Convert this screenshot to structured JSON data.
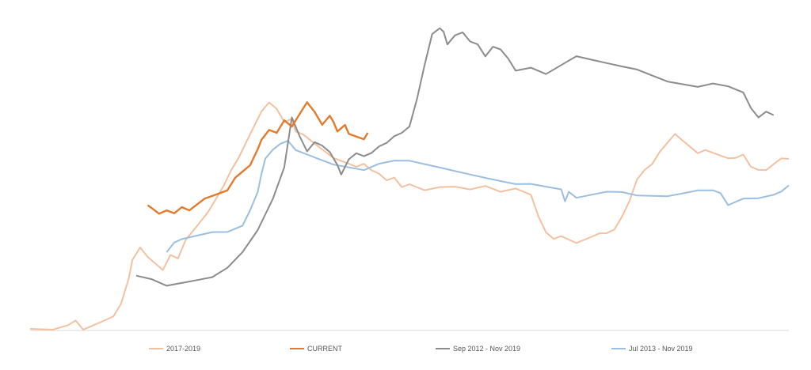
{
  "chart_data": {
    "type": "line",
    "title": "",
    "xlabel": "",
    "ylabel": "",
    "grid": false,
    "axes_visible": false,
    "legend_placement": "bottom",
    "ylim": [
      0,
      100
    ],
    "xlim": [
      0,
      100
    ],
    "series": [
      {
        "name": "2017-2019",
        "color": "#f4c1a0",
        "x": [
          0,
          1.5,
          3,
          5,
          6,
          7,
          8.5,
          10,
          11,
          12,
          13,
          13.5,
          14.5,
          15.5,
          16.5,
          17.5,
          18.5,
          19.5,
          20.5,
          21.5,
          22.5,
          23.5,
          24.5,
          25.5,
          26.5,
          27.5,
          28.5,
          29.5,
          30.5,
          31.5,
          32.5,
          33.5,
          34.5,
          35,
          36,
          37,
          38,
          39,
          40,
          41,
          42,
          43,
          44,
          45,
          46,
          47,
          48,
          49,
          50,
          52,
          54,
          56,
          58,
          60,
          62,
          64,
          66,
          67,
          68,
          69,
          70,
          71,
          72,
          73,
          74,
          75,
          76,
          77,
          78,
          79,
          80,
          81,
          82,
          83,
          84,
          85,
          86,
          87,
          88,
          89,
          90,
          91,
          92,
          93,
          94,
          95,
          96,
          97,
          98,
          99,
          100
        ],
        "y": [
          0,
          0,
          0,
          1.5,
          3,
          0,
          1.5,
          3,
          4,
          8,
          16,
          22,
          26,
          23,
          21,
          19,
          24,
          23,
          29,
          32,
          35,
          38,
          42,
          46,
          51,
          55,
          60,
          65,
          70,
          73,
          71,
          67,
          68,
          64,
          63,
          61,
          59,
          57,
          55,
          54,
          53,
          52,
          53,
          51,
          50,
          48,
          49,
          46,
          47,
          45,
          46,
          46,
          45,
          46,
          44,
          45,
          43,
          36,
          31,
          29,
          30,
          29,
          28,
          29,
          30,
          31,
          31,
          32,
          36,
          41,
          48,
          51,
          53,
          57,
          60,
          63,
          61,
          59,
          57,
          58,
          57,
          56,
          55,
          55,
          56,
          52,
          51,
          51,
          53,
          55,
          55
        ]
      },
      {
        "name": "CURRENT",
        "color": "#e37b2c",
        "x": [
          15.5,
          16,
          17,
          18,
          19,
          20,
          21,
          22,
          23,
          24,
          25,
          26,
          27,
          28,
          29,
          30,
          30.5,
          31.5,
          32.5,
          33.5,
          34.5,
          35.5,
          36.5,
          37.5,
          38.5,
          39.5,
          40,
          40.5,
          41,
          41.5,
          42,
          43,
          44,
          44.5
        ],
        "y": [
          40,
          39,
          37,
          38,
          37,
          39,
          38,
          40,
          42,
          43,
          44,
          45,
          49,
          51,
          53,
          58,
          61,
          64,
          63,
          67,
          65,
          69,
          73,
          70,
          66,
          69,
          67,
          64,
          65,
          66,
          63,
          62,
          61,
          63
        ]
      },
      {
        "name": "Sep 2012 - Nov 2019",
        "color": "#8c8c8c",
        "x": [
          14,
          16,
          18,
          20,
          22,
          24,
          26,
          28,
          30,
          32,
          33.5,
          34.5,
          35.5,
          36.5,
          37.5,
          38.5,
          39.5,
          40.5,
          41,
          42,
          43,
          44,
          45,
          46,
          47,
          48,
          49,
          50,
          51,
          52,
          53,
          54,
          54.5,
          55,
          56,
          57,
          58,
          59,
          60,
          61,
          62,
          63,
          64,
          66,
          68,
          70,
          72,
          74,
          76,
          78,
          80,
          82,
          84,
          86,
          88,
          90,
          92,
          94,
          95,
          96,
          97,
          98
        ],
        "y": [
          17,
          16,
          14,
          15,
          16,
          17,
          20,
          25,
          32,
          42,
          52,
          68,
          62,
          57,
          60,
          59,
          57,
          53,
          50,
          55,
          57,
          56,
          57,
          59,
          60,
          62,
          63,
          65,
          74,
          85,
          95,
          97,
          96,
          92,
          95,
          96,
          93,
          92,
          88,
          91,
          90,
          87,
          83,
          84,
          82,
          85,
          88,
          87,
          86,
          85,
          84,
          82,
          80,
          79,
          78,
          79,
          78,
          76,
          71,
          68,
          70,
          69
        ]
      },
      {
        "name": "Jul 2013 - Nov 2019",
        "color": "#9bbfe2",
        "x": [
          18,
          19,
          20,
          22,
          24,
          26,
          28,
          29,
          30,
          30.5,
          31,
          32,
          33,
          34,
          35,
          36,
          38,
          40,
          42,
          44,
          46,
          48,
          50,
          52,
          54,
          56,
          58,
          60,
          62,
          64,
          66,
          68,
          70,
          70.5,
          71,
          72,
          74,
          76,
          78,
          80,
          82,
          84,
          86,
          88,
          90,
          91,
          92,
          94,
          96,
          98,
          99,
          100
        ],
        "y": [
          25,
          28,
          29,
          30,
          31,
          31,
          33,
          38,
          44,
          50,
          55,
          58,
          60,
          61,
          58,
          57,
          55,
          53,
          52,
          51,
          53,
          54,
          54,
          53,
          52,
          51,
          50,
          49,
          48,
          47,
          47,
          46,
          45,
          41,
          44,
          42,
          43,
          44,
          44,
          43,
          43,
          43,
          44,
          45,
          45,
          44,
          40,
          42,
          42,
          43,
          44,
          46
        ]
      }
    ]
  }
}
